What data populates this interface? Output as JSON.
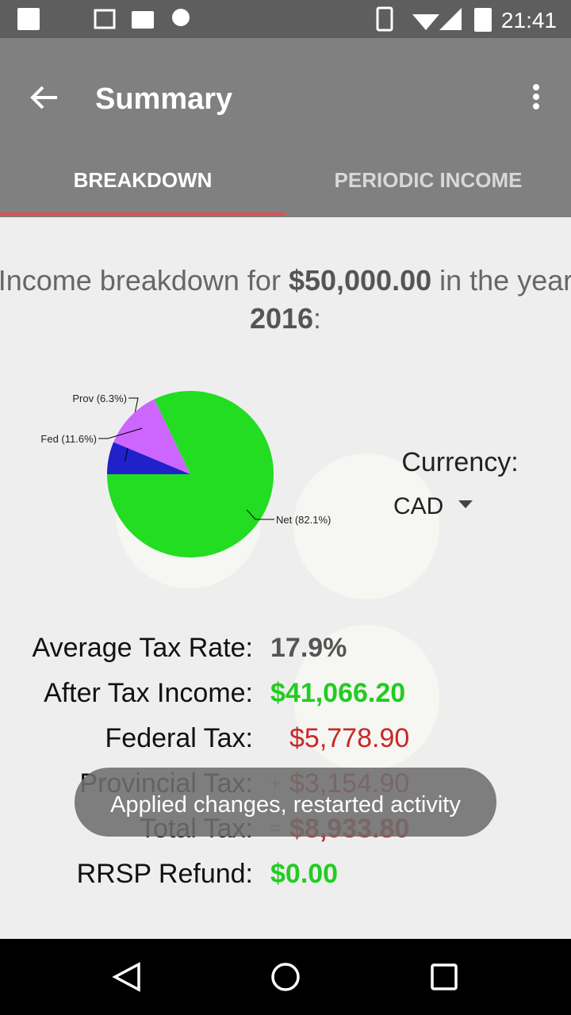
{
  "status_bar": {
    "time": "21:41"
  },
  "app_bar": {
    "title": "Summary"
  },
  "tabs": [
    "BREAKDOWN",
    "PERIODIC INCOME"
  ],
  "heading": {
    "intro": "Income breakdown for",
    "amount": "$50,000.00",
    "middle": "in the year",
    "year": "2016",
    "end": ":"
  },
  "chart_data": {
    "type": "pie",
    "values": [
      6.3,
      11.6,
      82.1
    ],
    "value_labels": [
      "Prov (6.3%)",
      "Fed (11.6%)",
      "Net (82.1%)"
    ],
    "colors": [
      "#2121cc",
      "#cc66ff",
      "#22dd22"
    ]
  },
  "currency": {
    "label": "Currency:",
    "value": "CAD"
  },
  "summary": [
    {
      "label": "Average Tax Rate:",
      "value": "17.9%"
    },
    {
      "label": "After Tax Income:",
      "value": "$41,066.20"
    },
    {
      "label": "Federal Tax:",
      "value": "$5,778.90"
    },
    {
      "label": "Provincial Tax:",
      "prefix": "+",
      "value": "$3,154.90"
    },
    {
      "label": "Total Tax:",
      "prefix": "=",
      "value": "$8,933.80"
    },
    {
      "label": "RRSP Refund:",
      "value": "$0.00"
    }
  ],
  "toast": "Applied changes, restarted activity"
}
